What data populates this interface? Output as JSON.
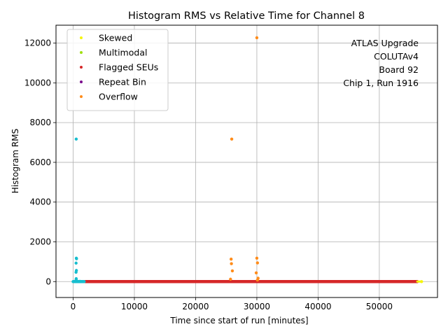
{
  "chart_data": {
    "type": "scatter",
    "title": "Histogram RMS vs Relative Time for Channel 8",
    "xlabel": "Time since start of run [minutes]",
    "ylabel": "Histogram RMS",
    "xlim": [
      -2800,
      59500
    ],
    "ylim": [
      -800,
      12900
    ],
    "xticks": [
      0,
      10000,
      20000,
      30000,
      40000,
      50000
    ],
    "xtick_labels": [
      "0",
      "10000",
      "20000",
      "30000",
      "40000",
      "50000"
    ],
    "yticks": [
      0,
      2000,
      4000,
      6000,
      8000,
      10000,
      12000
    ],
    "ytick_labels": [
      "0",
      "2000",
      "4000",
      "6000",
      "8000",
      "10000",
      "12000"
    ],
    "grid": true,
    "legend_position": "top-left",
    "annotation": [
      "ATLAS Upgrade",
      "COLUTAv4",
      "Board 92",
      "Chip 1, Run 1916"
    ],
    "baseline": {
      "cyan_x_range": [
        0,
        1800
      ],
      "red_x_range": [
        2000,
        56200
      ],
      "y": 0,
      "yellow_end_x": 56900
    },
    "series": [
      {
        "name": "Skewed",
        "color": "#f5f50a",
        "points": [
          [
            56900,
            0
          ]
        ]
      },
      {
        "name": "Multimodal",
        "color": "#a0e010",
        "points": []
      },
      {
        "name": "Flagged SEUs",
        "color": "#d62728",
        "points": [
          [
            25800,
            0
          ],
          [
            30200,
            0
          ]
        ]
      },
      {
        "name": "Repeat Bin",
        "color": "#7a0a8c",
        "points": []
      },
      {
        "name": "Overflow",
        "color": "#ff8c1a",
        "points": [
          [
            30000,
            12270
          ],
          [
            25900,
            7170
          ],
          [
            25800,
            1130
          ],
          [
            25850,
            900
          ],
          [
            26000,
            540
          ],
          [
            25700,
            120
          ],
          [
            30000,
            1180
          ],
          [
            30100,
            940
          ],
          [
            29900,
            440
          ],
          [
            30200,
            170
          ],
          [
            30100,
            80
          ]
        ]
      },
      {
        "name": "",
        "color": "#17becf",
        "points": [
          [
            500,
            7170
          ],
          [
            520,
            1180
          ],
          [
            550,
            1150
          ],
          [
            480,
            930
          ],
          [
            530,
            560
          ],
          [
            470,
            470
          ],
          [
            500,
            150
          ],
          [
            520,
            60
          ],
          [
            300,
            20
          ],
          [
            700,
            15
          ],
          [
            1100,
            10
          ]
        ]
      }
    ]
  }
}
